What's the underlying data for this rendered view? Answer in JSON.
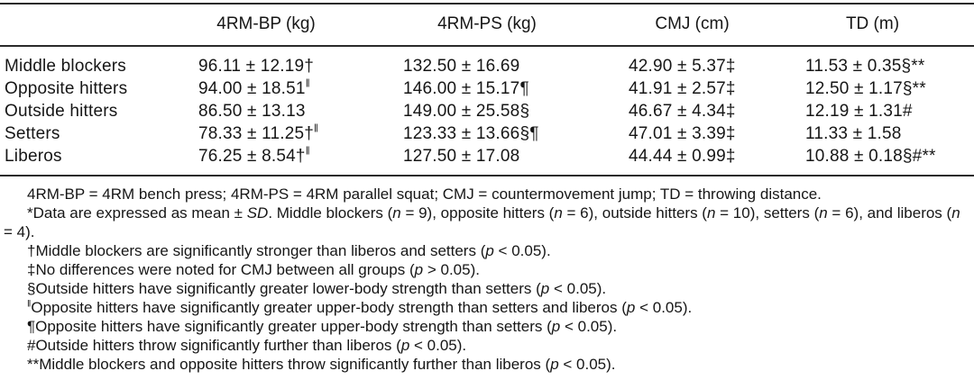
{
  "table": {
    "columns": [
      "",
      "4RM-BP (kg)",
      "4RM-PS (kg)",
      "CMJ (cm)",
      "TD (m)"
    ],
    "rows": [
      {
        "label": "Middle blockers",
        "values": [
          "96.11 ± 12.19†",
          "132.50 ± 16.69",
          "42.90 ± 5.37‡",
          "11.53 ± 0.35§**"
        ]
      },
      {
        "label": "Opposite hitters",
        "values": [
          "94.00 ± 18.51‖",
          "146.00 ± 15.17¶",
          "41.91 ± 2.57‡",
          "12.50 ± 1.17§**"
        ]
      },
      {
        "label": "Outside hitters",
        "values": [
          "86.50 ± 13.13",
          "149.00 ± 25.58§",
          "46.67 ± 4.34‡",
          "12.19 ± 1.31#"
        ]
      },
      {
        "label": "Setters",
        "values": [
          "78.33 ± 11.25†‖",
          "123.33 ± 13.66§¶",
          "47.01 ± 3.39‡",
          "11.33 ± 1.58"
        ]
      },
      {
        "label": "Liberos",
        "values": [
          "76.25 ± 8.54†‖",
          "127.50 ± 17.08",
          "44.44 ± 0.99‡",
          "10.88 ± 0.18§#**"
        ]
      }
    ]
  },
  "footnotes": [
    "4RM-BP = 4RM bench press; 4RM-PS = 4RM parallel squat; CMJ = countermovement jump; TD = throwing distance.",
    "*Data are expressed as mean ± SD. Middle blockers (n = 9), opposite hitters (n = 6), outside hitters (n = 10), setters (n = 6), and liberos (n = 4).",
    "†Middle blockers are significantly stronger than liberos and setters (p < 0.05).",
    "‡No differences were noted for CMJ between all groups (p > 0.05).",
    "§Outside hitters have significantly greater lower-body strength than setters (p < 0.05).",
    "‖Opposite hitters have significantly greater upper-body strength than setters and liberos (p < 0.05).",
    "¶Opposite hitters have significantly greater upper-body strength than setters (p < 0.05).",
    "#Outside hitters throw significantly further than liberos (p < 0.05).",
    "**Middle blockers and opposite hitters throw significantly further than liberos (p < 0.05)."
  ],
  "colors": {
    "text": "#161616",
    "rule": "#2a2a2a",
    "background": "#ffffff"
  }
}
